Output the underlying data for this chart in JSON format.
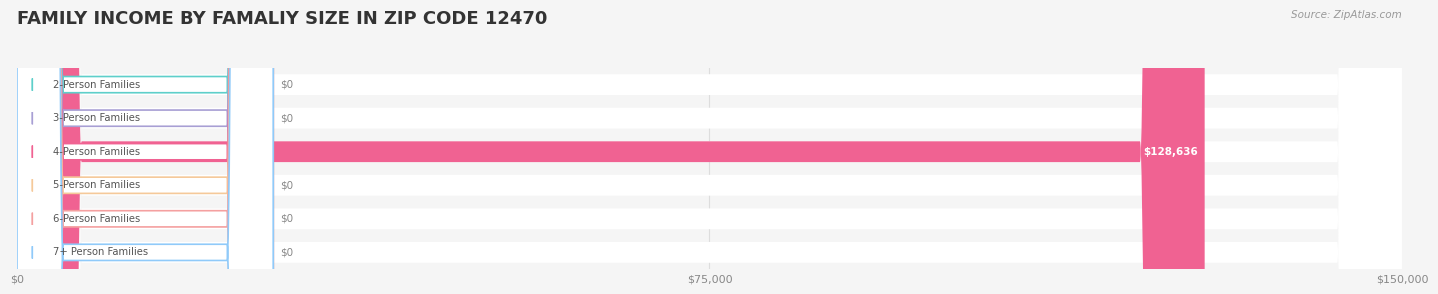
{
  "title": "FAMILY INCOME BY FAMALIY SIZE IN ZIP CODE 12470",
  "source": "Source: ZipAtlas.com",
  "categories": [
    "2-Person Families",
    "3-Person Families",
    "4-Person Families",
    "5-Person Families",
    "6-Person Families",
    "7+ Person Families"
  ],
  "values": [
    0,
    0,
    128636,
    0,
    0,
    0
  ],
  "bar_colors": [
    "#5ecfca",
    "#a89fd4",
    "#f06292",
    "#f5c99a",
    "#f4a0a0",
    "#90caf9"
  ],
  "label_bg_colors": [
    "#e8f8f7",
    "#eeedf8",
    "#fce4ec",
    "#fdf3e7",
    "#fdecea",
    "#e3f2fd"
  ],
  "xlim": [
    0,
    150000
  ],
  "xticks": [
    0,
    75000,
    150000
  ],
  "xtick_labels": [
    "$0",
    "$75,000",
    "$150,000"
  ],
  "background_color": "#f5f5f5",
  "title_fontsize": 13,
  "annotation_value": "$128,636",
  "annotation_index": 2
}
